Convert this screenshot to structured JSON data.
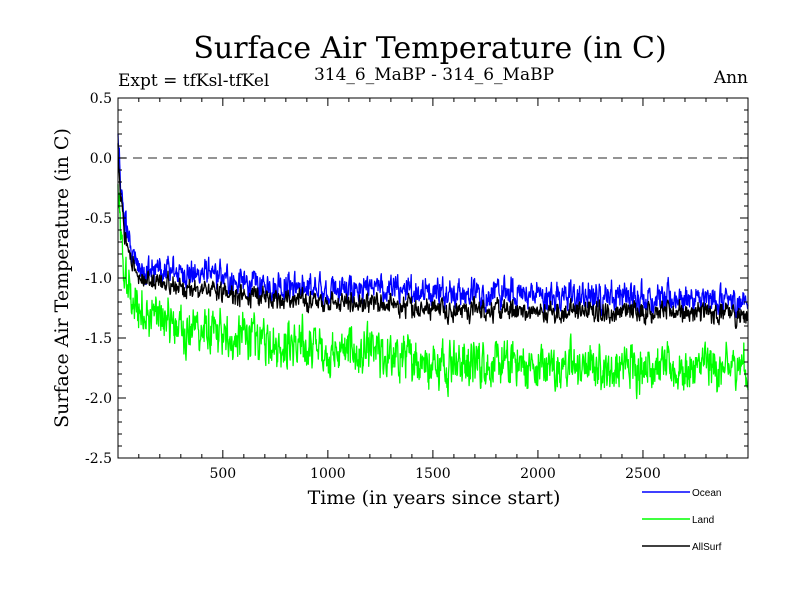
{
  "chart_data": {
    "type": "line",
    "title": "Surface Air Temperature (in C)",
    "subtitle_left": "Expt = tfKsl-tfKel",
    "subtitle_center": "314_6_MaBP - 314_6_MaBP",
    "subtitle_right": "Ann",
    "xlabel": "Time (in years since start)",
    "ylabel": "Surface Air Temperature (in C)",
    "xlim": [
      1,
      3000
    ],
    "ylim": [
      -2.5,
      0.5
    ],
    "x_ticks": [
      500,
      1000,
      1500,
      2000,
      2500
    ],
    "x_tick_labels": [
      "500",
      "1000",
      "1500",
      "2000",
      "2500"
    ],
    "y_ticks": [
      0.5,
      0.0,
      -0.5,
      -1.0,
      -1.5,
      -2.0,
      -2.5
    ],
    "y_tick_labels": [
      "0.5",
      "0.0",
      "-0.5",
      "-1.0",
      "-1.5",
      "-2.0",
      "-2.5"
    ],
    "reference_line": 0.0,
    "legend_position": "bottom-right",
    "series": [
      {
        "name": "Ocean",
        "color": "#0000ff",
        "noise": 0.14,
        "anchors": [
          [
            1,
            0.2
          ],
          [
            10,
            -0.2
          ],
          [
            30,
            -0.5
          ],
          [
            60,
            -0.75
          ],
          [
            100,
            -0.9
          ],
          [
            200,
            -0.95
          ],
          [
            400,
            -0.95
          ],
          [
            600,
            -1.05
          ],
          [
            1000,
            -1.1
          ],
          [
            1500,
            -1.1
          ],
          [
            2000,
            -1.15
          ],
          [
            2500,
            -1.15
          ],
          [
            3000,
            -1.2
          ]
        ]
      },
      {
        "name": "Land",
        "color": "#00ff00",
        "noise": 0.22,
        "anchors": [
          [
            1,
            -0.3
          ],
          [
            10,
            -0.6
          ],
          [
            30,
            -0.95
          ],
          [
            60,
            -1.15
          ],
          [
            100,
            -1.25
          ],
          [
            200,
            -1.35
          ],
          [
            400,
            -1.45
          ],
          [
            600,
            -1.5
          ],
          [
            1000,
            -1.6
          ],
          [
            1500,
            -1.7
          ],
          [
            2000,
            -1.75
          ],
          [
            2500,
            -1.75
          ],
          [
            3000,
            -1.75
          ]
        ]
      },
      {
        "name": "AllSurf",
        "color": "#000000",
        "noise": 0.1,
        "anchors": [
          [
            1,
            0.1
          ],
          [
            10,
            -0.3
          ],
          [
            30,
            -0.6
          ],
          [
            60,
            -0.85
          ],
          [
            100,
            -1.0
          ],
          [
            200,
            -1.05
          ],
          [
            400,
            -1.1
          ],
          [
            600,
            -1.15
          ],
          [
            1000,
            -1.2
          ],
          [
            1500,
            -1.25
          ],
          [
            2000,
            -1.28
          ],
          [
            2500,
            -1.28
          ],
          [
            3000,
            -1.3
          ]
        ]
      }
    ]
  }
}
